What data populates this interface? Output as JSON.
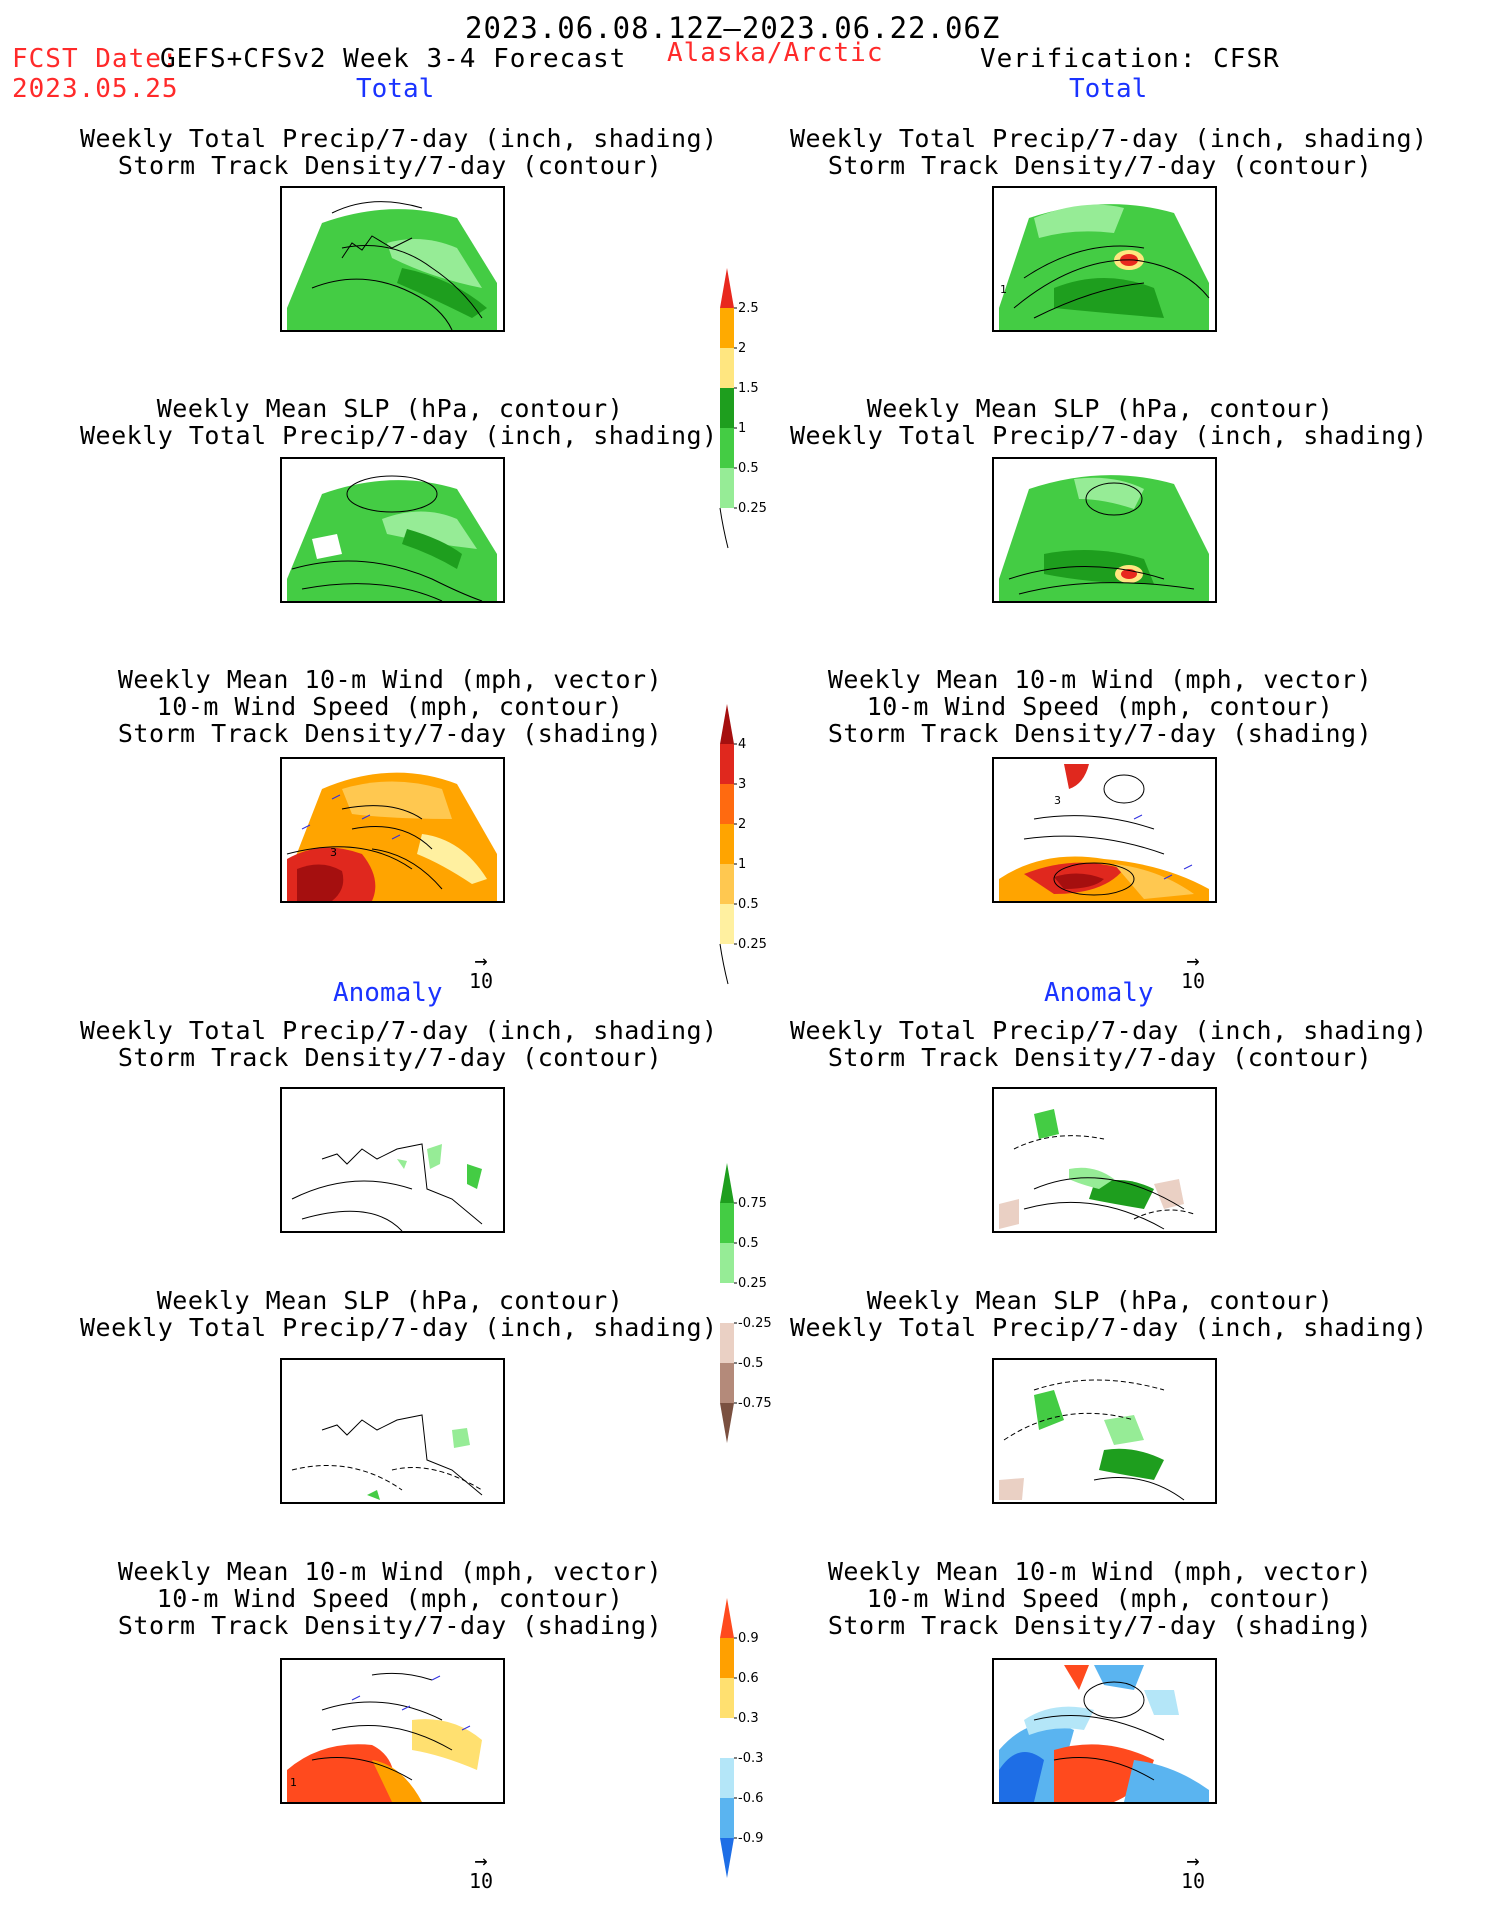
{
  "header": {
    "date_range": "2023.06.08.12Z–2023.06.22.06Z",
    "fcst_label": "FCST Date:",
    "fcst_model": "GEFS+CFSv2 Week 3-4 Forecast",
    "fcst_date": "2023.05.25",
    "region": "Alaska/Arctic",
    "verification": "Verification: CFSR"
  },
  "sections": {
    "total_label": "Total",
    "anomaly_label": "Anomaly"
  },
  "panel_titles": {
    "precip_storm": "Weekly Total Precip/7-day (inch, shading)\nStorm Track Density/7-day (contour)",
    "slp_precip": "Weekly Mean SLP (hPa, contour)\nWeekly Total Precip/7-day (inch, shading)",
    "wind_storm": "Weekly Mean 10-m Wind (mph, vector)\n10-m Wind Speed (mph, contour)\nStorm Track Density/7-day (shading)"
  },
  "vector_reference": "10",
  "map_contour_labels": {
    "total_wind_left": "3",
    "total_wind_right": "3",
    "total_storm_right": "1",
    "anom_wind_left": "1"
  },
  "colorbars": {
    "precip_total": {
      "labels": [
        "2.5",
        "2",
        "1.5",
        "1",
        "0.5",
        "0.25"
      ],
      "colors": [
        "#e8281e",
        "#ffaa00",
        "#ffe680",
        "#1e9e1e",
        "#44cc44",
        "#96ec96"
      ]
    },
    "storm_total": {
      "labels": [
        "4",
        "3",
        "2",
        "1",
        "0.5",
        "0.25"
      ],
      "colors": [
        "#a50f0f",
        "#e0281e",
        "#ff6a10",
        "#ffa400",
        "#ffc850",
        "#fff0a0"
      ]
    },
    "precip_anom": {
      "labels": [
        "0.75",
        "0.5",
        "0.25",
        "-0.25",
        "-0.5",
        "-0.75"
      ],
      "colors": [
        "#1e9e1e",
        "#44cc44",
        "#96ec96",
        "#ffffff",
        "#ead0c4",
        "#b48a7a",
        "#7a5040"
      ]
    },
    "storm_anom": {
      "labels": [
        "0.9",
        "0.6",
        "0.3",
        "-0.3",
        "-0.6",
        "-0.9"
      ],
      "colors": [
        "#ff4a1e",
        "#ffa000",
        "#ffe070",
        "#ffffff",
        "#b4e6f8",
        "#5ab4f0",
        "#1e6ee6"
      ]
    }
  },
  "colors": {
    "red_text": "#ff2a2a",
    "blue_text": "#1a33ff"
  }
}
